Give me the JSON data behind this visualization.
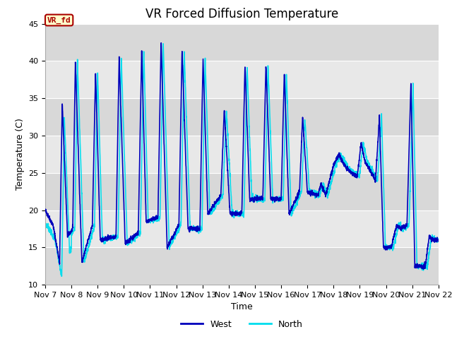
{
  "title": "VR Forced Diffusion Temperature",
  "xlabel": "Time",
  "ylabel": "Temperature (C)",
  "ylim": [
    10,
    45
  ],
  "xlim": [
    0,
    15
  ],
  "background_color": "#ffffff",
  "plot_bg_color": "#e8e8e8",
  "grid_color": "#ffffff",
  "west_color": "#0000bb",
  "north_color": "#00ddee",
  "legend_west": "West",
  "legend_north": "North",
  "label_box_text": "VR_fd",
  "label_box_bg": "#ffffcc",
  "label_box_border": "#aa0000",
  "label_box_text_color": "#aa0000",
  "xtick_labels": [
    "Nov 7",
    "Nov 8",
    "Nov 9",
    "Nov 10",
    "Nov 11",
    "Nov 12",
    "Nov 13",
    "Nov 14",
    "Nov 15",
    "Nov 16",
    "Nov 17",
    "Nov 18",
    "Nov 19",
    "Nov 20",
    "Nov 21",
    "Nov 22"
  ],
  "ytick_values": [
    10,
    15,
    20,
    25,
    30,
    35,
    40,
    45
  ],
  "title_fontsize": 12,
  "axis_label_fontsize": 9,
  "tick_fontsize": 8,
  "line_width": 1.2,
  "figwidth": 6.4,
  "figheight": 4.8,
  "dpi": 100,
  "key_times_west": [
    0.0,
    0.3,
    0.55,
    0.65,
    0.85,
    1.05,
    1.15,
    1.4,
    1.8,
    1.92,
    2.1,
    2.7,
    2.82,
    3.05,
    3.55,
    3.68,
    3.85,
    4.3,
    4.42,
    4.65,
    5.1,
    5.22,
    5.45,
    5.9,
    6.02,
    6.2,
    6.7,
    6.83,
    7.05,
    7.5,
    7.62,
    7.8,
    8.3,
    8.42,
    8.6,
    9.0,
    9.12,
    9.3,
    9.7,
    9.82,
    10.0,
    10.4,
    10.52,
    10.7,
    11.0,
    11.2,
    11.5,
    11.9,
    12.05,
    12.2,
    12.6,
    12.75,
    12.9,
    13.2,
    13.4,
    13.55,
    13.8,
    13.95,
    14.1,
    14.5,
    14.65,
    14.8,
    15.0
  ],
  "key_vals_west": [
    20.0,
    18.0,
    13.0,
    34.5,
    16.5,
    17.5,
    40.0,
    13.0,
    18.0,
    38.5,
    16.0,
    16.5,
    40.5,
    15.5,
    17.0,
    41.5,
    18.5,
    19.0,
    42.5,
    15.0,
    18.0,
    41.5,
    17.5,
    17.5,
    40.5,
    19.5,
    22.0,
    33.5,
    19.5,
    19.5,
    39.5,
    21.5,
    21.5,
    39.5,
    21.5,
    21.5,
    38.5,
    19.5,
    22.5,
    32.5,
    22.5,
    22.0,
    23.5,
    22.0,
    26.0,
    27.5,
    25.5,
    24.5,
    29.0,
    26.5,
    24.0,
    32.5,
    15.0,
    15.0,
    18.0,
    17.5,
    18.0,
    37.0,
    12.5,
    12.5,
    16.5,
    16.0,
    16.0
  ]
}
